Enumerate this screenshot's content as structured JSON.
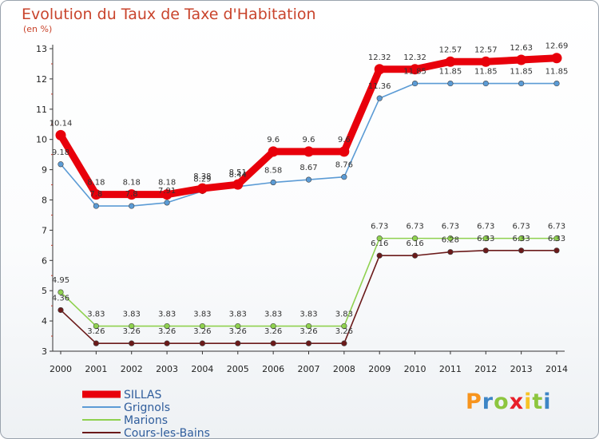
{
  "title": "Evolution du Taux de Taxe d'Habitation",
  "unit": "(en %)",
  "logo": {
    "letters": [
      "P",
      "r",
      "o",
      "x",
      "i",
      "t",
      "i"
    ],
    "colors": [
      "#f7941d",
      "#3d85c6",
      "#8dc63f",
      "#e81f2a",
      "#f7c325",
      "#8dc63f",
      "#3d85c6"
    ]
  },
  "chart_data": {
    "type": "line",
    "title": "Evolution du Taux de Taxe d'Habitation",
    "ylabel": "(en %)",
    "x": [
      "2000",
      "2001",
      "2002",
      "2003",
      "2004",
      "2005",
      "2006",
      "2007",
      "2008",
      "2009",
      "2010",
      "2011",
      "2012",
      "2013",
      "2014"
    ],
    "yticks": [
      "3",
      "4",
      "5",
      "6",
      "7",
      "8",
      "9",
      "10",
      "11",
      "12",
      "13"
    ],
    "ylim": [
      3,
      13
    ],
    "grid": false,
    "legend": "bottom-left",
    "series": [
      {
        "name": "SILLAS",
        "color": "#e8000b",
        "values": [
          10.14,
          8.18,
          8.18,
          8.18,
          8.38,
          8.51,
          9.6,
          9.6,
          9.6,
          12.32,
          12.32,
          12.57,
          12.57,
          12.63,
          12.69
        ],
        "labels": [
          "10.14",
          "8.18",
          "8.18",
          "8.18",
          "8.38",
          "8.51",
          "9.6",
          "9.6",
          "9.6",
          "12.32",
          "12.32",
          "12.57",
          "12.57",
          "12.63",
          "12.69"
        ]
      },
      {
        "name": "Grignols",
        "color": "#5b9bd5",
        "values": [
          9.18,
          7.8,
          7.8,
          7.91,
          8.29,
          8.44,
          8.58,
          8.67,
          8.76,
          11.36,
          11.85,
          11.85,
          11.85,
          11.85,
          11.85
        ],
        "labels": [
          "9.18",
          "7.8",
          "7.8",
          "7.91",
          "8.29",
          "8.44",
          "8.58",
          "8.67",
          "8.76",
          "11.36",
          "11.85",
          "11.85",
          "11.85",
          "11.85",
          "11.85"
        ]
      },
      {
        "name": "Marions",
        "color": "#8fd14f",
        "values": [
          4.95,
          3.83,
          3.83,
          3.83,
          3.83,
          3.83,
          3.83,
          3.83,
          3.83,
          6.73,
          6.73,
          6.73,
          6.73,
          6.73,
          6.73
        ],
        "labels": [
          "4.95",
          "3.83",
          "3.83",
          "3.83",
          "3.83",
          "3.83",
          "3.83",
          "3.83",
          "3.83",
          "6.73",
          "6.73",
          "6.73",
          "6.73",
          "6.73",
          "6.73"
        ]
      },
      {
        "name": "Cours-les-Bains",
        "color": "#6b1a1a",
        "values": [
          4.36,
          3.26,
          3.26,
          3.26,
          3.26,
          3.26,
          3.26,
          3.26,
          3.26,
          6.16,
          6.16,
          6.28,
          6.33,
          6.33,
          6.33
        ],
        "labels": [
          "4.36",
          "3.26",
          "3.26",
          "3.26",
          "3.26",
          "3.26",
          "3.26",
          "3.26",
          "3.26",
          "6.16",
          "6.16",
          "6.28",
          "6.33",
          "6.33",
          "6.33"
        ]
      }
    ]
  }
}
